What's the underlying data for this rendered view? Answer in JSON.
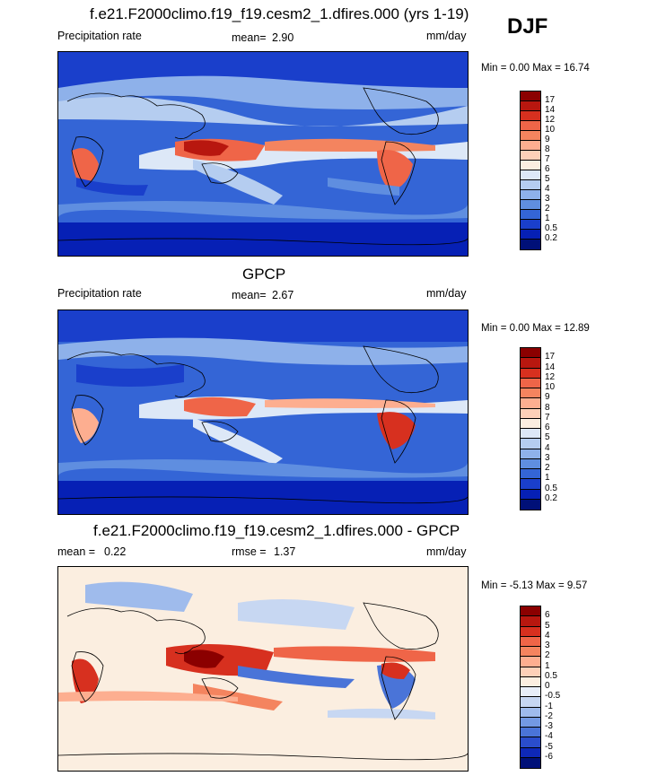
{
  "season": "DJF",
  "panels": [
    {
      "title": "f.e21.F2000climo.f19_f19.cesm2_1.dfires.000 (yrs 1-19)",
      "left_label": "Precipitation rate",
      "mean_label": "mean=",
      "mean_value": "2.90",
      "units": "mm/day",
      "minmax": "Min =   0.00 Max =  16.74",
      "colorbar_ticks": [
        "17",
        "14",
        "12",
        "10",
        "9",
        "8",
        "7",
        "6",
        "5",
        "4",
        "3",
        "2",
        "1",
        "0.5",
        "0.2"
      ],
      "colors": [
        "#8b0000",
        "#b8170f",
        "#d7301f",
        "#ef6548",
        "#f4845f",
        "#fdae90",
        "#fdd0b8",
        "#fbeee0",
        "#dde8f7",
        "#b5cdf0",
        "#8eb1ea",
        "#5f8ee0",
        "#3465d6",
        "#1a3fcb",
        "#0620b5",
        "#001078"
      ]
    },
    {
      "title": "GPCP",
      "left_label": "Precipitation rate",
      "mean_label": "mean=",
      "mean_value": "2.67",
      "units": "mm/day",
      "minmax": "Min =   0.00 Max =  12.89",
      "colorbar_ticks": [
        "17",
        "14",
        "12",
        "10",
        "9",
        "8",
        "7",
        "6",
        "5",
        "4",
        "3",
        "2",
        "1",
        "0.5",
        "0.2"
      ],
      "colors": [
        "#8b0000",
        "#b8170f",
        "#d7301f",
        "#ef6548",
        "#f4845f",
        "#fdae90",
        "#fdd0b8",
        "#fbeee0",
        "#dde8f7",
        "#b5cdf0",
        "#8eb1ea",
        "#5f8ee0",
        "#3465d6",
        "#1a3fcb",
        "#0620b5",
        "#001078"
      ]
    },
    {
      "title": "f.e21.F2000climo.f19_f19.cesm2_1.dfires.000 - GPCP",
      "left_label": "mean =",
      "left_value": "0.22",
      "mean_label": "rmse =",
      "mean_value": "1.37",
      "units": "mm/day",
      "minmax": "Min =  -5.13 Max =   9.57",
      "colorbar_ticks": [
        "6",
        "5",
        "4",
        "3",
        "2",
        "1",
        "0.5",
        "0",
        "-0.5",
        "-1",
        "-2",
        "-3",
        "-4",
        "-5",
        "-6"
      ],
      "colors": [
        "#8b0000",
        "#b8170f",
        "#d7301f",
        "#ef6548",
        "#f4845f",
        "#fdae90",
        "#fdd0b8",
        "#fbeee0",
        "#e8eef8",
        "#c7d7f2",
        "#9fbbec",
        "#7399e3",
        "#4a74d8",
        "#2a4dcc",
        "#0e28b8",
        "#001078"
      ]
    }
  ]
}
